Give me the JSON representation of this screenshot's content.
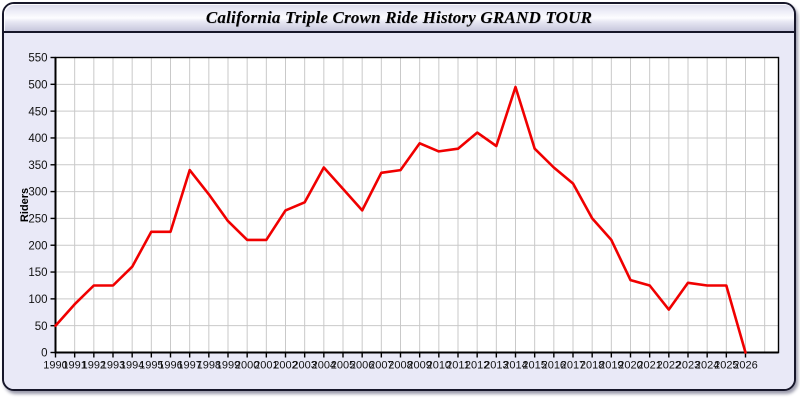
{
  "header": {
    "title": "California Triple Crown Ride History GRAND TOUR"
  },
  "chart_data": {
    "type": "line",
    "title": "California Triple Crown Ride History GRAND TOUR",
    "xlabel": "",
    "ylabel": "Riders",
    "ylim": [
      0,
      550
    ],
    "ytick_step": 50,
    "grid": true,
    "legend": "none",
    "x": [
      1990,
      1991,
      1992,
      1993,
      1994,
      1995,
      1996,
      1997,
      1998,
      1999,
      2000,
      2001,
      2002,
      2003,
      2004,
      2005,
      2006,
      2007,
      2008,
      2009,
      2010,
      2011,
      2012,
      2013,
      2014,
      2015,
      2016,
      2017,
      2018,
      2019,
      2020,
      2021,
      2022,
      2023,
      2024,
      2025,
      2026
    ],
    "series": [
      {
        "name": "Riders",
        "color": "#f00000",
        "values": [
          50,
          90,
          125,
          125,
          160,
          225,
          225,
          340,
          295,
          245,
          210,
          210,
          265,
          280,
          345,
          305,
          265,
          335,
          340,
          390,
          375,
          380,
          410,
          385,
          495,
          380,
          345,
          315,
          250,
          210,
          135,
          125,
          80,
          130,
          125,
          125,
          0
        ]
      }
    ],
    "colors": {
      "plot_background": "#ffffff",
      "grid": "#c9c9c9",
      "axis": "#000000",
      "tick_label": "#111111",
      "panel_background": "#e9e9f7"
    }
  }
}
